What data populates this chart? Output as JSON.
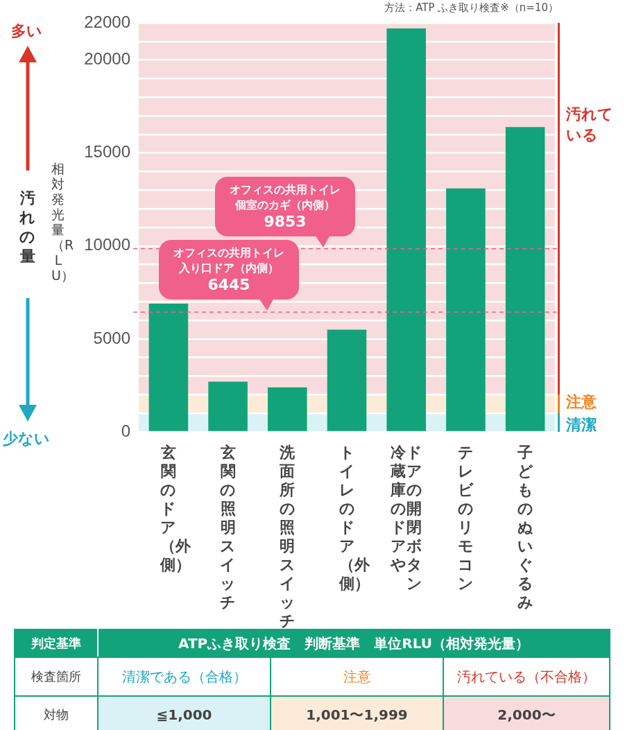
{
  "chart_data": {
    "type": "bar",
    "ylabel": "相対発光量（RLU）",
    "categories": [
      "玄関のドア（外側）",
      "玄関の照明スイッチ",
      "洗面所の照明スイッチ",
      "トイレのドア（外側）",
      "冷蔵庫のドアやドアの開閉ボタン",
      "テレビのリモコン",
      "子どものぬいぐるみ"
    ],
    "values": [
      6900,
      2700,
      2400,
      5500,
      21700,
      13100,
      16400
    ],
    "color": "#13a37a",
    "ylim": [
      0,
      22000
    ],
    "yticks": [
      0,
      {
        "value": 1000,
        "label": null
      },
      {
        "value": 2000,
        "label": null
      },
      {
        "value": 3000,
        "label": null
      },
      {
        "value": 4000,
        "label": null
      },
      5000,
      {
        "value": 6000,
        "label": null
      },
      {
        "value": 7000,
        "label": null
      },
      {
        "value": 8000,
        "label": null
      },
      {
        "value": 9000,
        "label": null
      },
      10000,
      {
        "value": 11000,
        "label": null
      },
      {
        "value": 12000,
        "label": null
      },
      {
        "value": 13000,
        "label": null
      },
      {
        "value": 14000,
        "label": null
      },
      15000,
      {
        "value": 16000,
        "label": null
      },
      {
        "value": 17000,
        "label": null
      },
      {
        "value": 18000,
        "label": null
      },
      {
        "value": 19000,
        "label": null
      },
      20000,
      {
        "value": 21000,
        "label": null
      },
      22000
    ],
    "grid": "y",
    "ref_lines": [
      {
        "axis": "y",
        "value": 9853,
        "label": "オフィスの共用トイレ個室のカギ（内側）9853",
        "color": "#f0608a",
        "line_style": "dashed"
      },
      {
        "axis": "y",
        "value": 6445,
        "label": "オフィスの共用トイレ入り口ドア（内側）6445",
        "color": "#f0608a",
        "line_style": "dashed"
      }
    ],
    "bands": [
      {
        "axis": "y",
        "from": 0,
        "to": 1000,
        "label": "清潔",
        "color": "#daf2f5"
      },
      {
        "axis": "y",
        "from": 1000,
        "to": 2000,
        "label": "注意",
        "color": "#fdebd9"
      },
      {
        "axis": "y",
        "from": 2000,
        "to": 22000,
        "label": "汚れている",
        "color": "#f8dcdd"
      }
    ],
    "annotations": [
      "方法：ATP ふき取り検査※（n=10）",
      "多い",
      "汚れの量",
      "少ない",
      "判定基準",
      "ATPふき取り検査　判断基準　単位RLU（相対発光量）",
      "検査箇所",
      "清潔である（合格）",
      "注意",
      "汚れている（不合格）",
      "対物",
      "≦1,000",
      "1,001〜1,999",
      "2,000〜"
    ]
  }
}
